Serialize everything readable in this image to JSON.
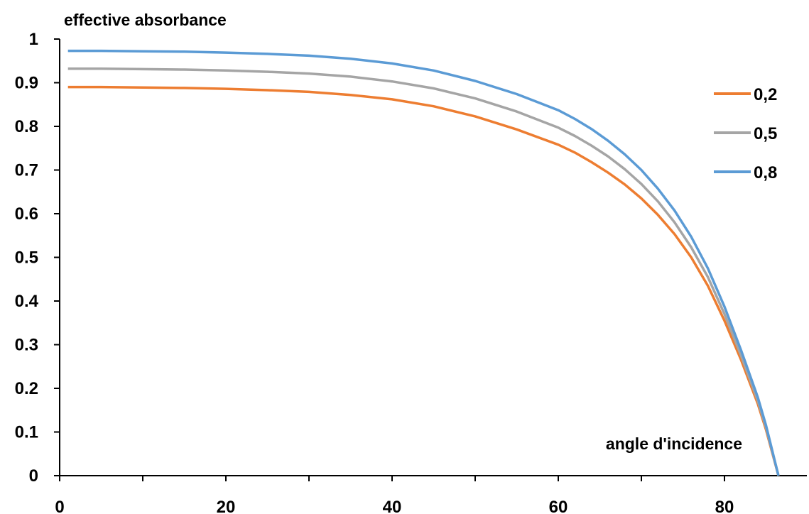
{
  "chart_data": {
    "type": "line",
    "ylabel": "effective absorbance",
    "xlabel": "angle d'incidence",
    "xlim": [
      0,
      87
    ],
    "ylim": [
      0,
      1
    ],
    "x_ticks": [
      "0",
      "20",
      "40",
      "60",
      "80"
    ],
    "y_ticks": [
      "0",
      "0.1",
      "0.2",
      "0.3",
      "0.4",
      "0.5",
      "0.6",
      "0.7",
      "0.8",
      "0.9",
      "1"
    ],
    "grid": false,
    "legend_position": "top-right",
    "x": [
      1,
      5,
      10,
      15,
      20,
      25,
      30,
      35,
      40,
      45,
      50,
      55,
      60,
      62,
      64,
      66,
      68,
      70,
      72,
      74,
      76,
      78,
      80,
      82,
      84,
      85,
      86.5
    ],
    "series": [
      {
        "name": "0,2",
        "color": "#ED7D31",
        "values": [
          0.89,
          0.89,
          0.889,
          0.888,
          0.886,
          0.883,
          0.879,
          0.872,
          0.862,
          0.846,
          0.823,
          0.793,
          0.758,
          0.74,
          0.718,
          0.694,
          0.667,
          0.635,
          0.597,
          0.553,
          0.5,
          0.435,
          0.355,
          0.265,
          0.165,
          0.105,
          0.0
        ]
      },
      {
        "name": "0,5",
        "color": "#A5A5A5",
        "values": [
          0.932,
          0.932,
          0.931,
          0.93,
          0.928,
          0.925,
          0.921,
          0.914,
          0.903,
          0.887,
          0.864,
          0.834,
          0.797,
          0.778,
          0.756,
          0.731,
          0.702,
          0.668,
          0.628,
          0.58,
          0.523,
          0.455,
          0.37,
          0.275,
          0.172,
          0.11,
          0.0
        ]
      },
      {
        "name": "0,8",
        "color": "#5B9BD5",
        "values": [
          0.973,
          0.973,
          0.972,
          0.971,
          0.969,
          0.966,
          0.962,
          0.955,
          0.944,
          0.928,
          0.904,
          0.874,
          0.837,
          0.817,
          0.794,
          0.767,
          0.736,
          0.7,
          0.657,
          0.607,
          0.547,
          0.475,
          0.387,
          0.287,
          0.18,
          0.115,
          0.0
        ]
      }
    ]
  }
}
